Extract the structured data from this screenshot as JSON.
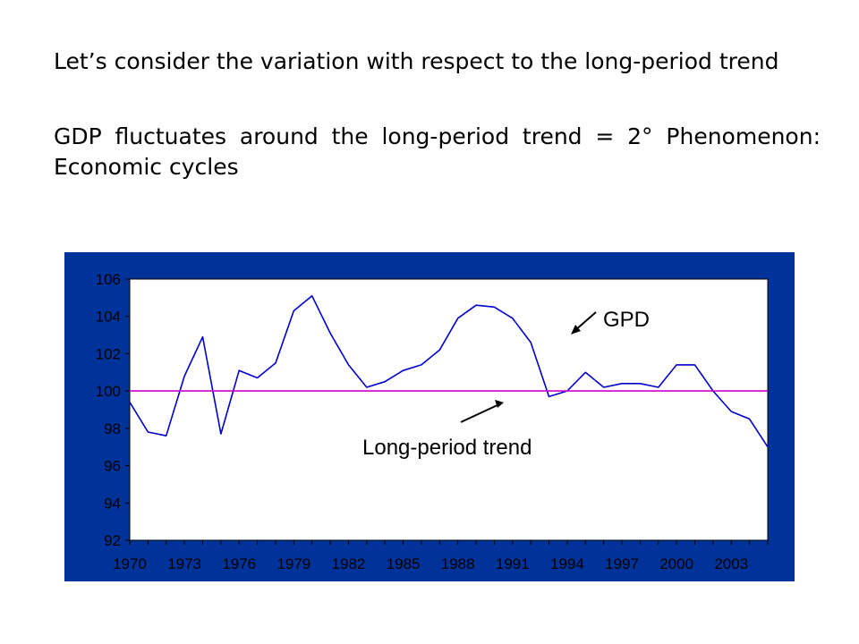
{
  "slide": {
    "paragraph1": "Let’s consider the variation with respect to the long-period trend",
    "paragraph2_line1": "GDP fluctuates around the long-period trend = 2°",
    "paragraph2_line2": "Phenomenon: Economic cycles"
  },
  "chart_data": {
    "type": "line",
    "background_color": "#003399",
    "plot_color": "#ffffff",
    "x": [
      1970,
      1971,
      1972,
      1973,
      1974,
      1975,
      1976,
      1977,
      1978,
      1979,
      1980,
      1981,
      1982,
      1983,
      1984,
      1985,
      1986,
      1987,
      1988,
      1989,
      1990,
      1991,
      1992,
      1993,
      1994,
      1995,
      1996,
      1997,
      1998,
      1999,
      2000,
      2001,
      2002,
      2003,
      2004,
      2005
    ],
    "x_tick_labels": [
      "1970",
      "1973",
      "1976",
      "1979",
      "1982",
      "1985",
      "1988",
      "1991",
      "1994",
      "1997",
      "2000",
      "2003"
    ],
    "ylim": [
      92,
      106
    ],
    "y_ticks": [
      92,
      94,
      96,
      98,
      100,
      102,
      104,
      106
    ],
    "series": [
      {
        "color": "#0000cc",
        "values": [
          99.4,
          97.8,
          97.6,
          100.8,
          102.9,
          97.7,
          101.1,
          100.7,
          101.5,
          104.3,
          105.1,
          103.1,
          101.4,
          100.2,
          100.5,
          101.1,
          101.4,
          102.2,
          103.9,
          104.6,
          104.5,
          103.9,
          102.6,
          99.7,
          100.0,
          101.0,
          100.2,
          100.4,
          100.4,
          100.2,
          101.4,
          101.4,
          100.0,
          98.9,
          98.5,
          97.0
        ]
      },
      {
        "color": "#cc00cc",
        "values": [
          100,
          100,
          100,
          100,
          100,
          100,
          100,
          100,
          100,
          100,
          100,
          100,
          100,
          100,
          100,
          100,
          100,
          100,
          100,
          100,
          100,
          100,
          100,
          100,
          100,
          100,
          100,
          100,
          100,
          100,
          100,
          100,
          100,
          100,
          100,
          100
        ]
      }
    ],
    "annotations": [
      {
        "text": "GPD",
        "target": "gdp-series"
      },
      {
        "text": "Long-period trend",
        "target": "trend-series"
      }
    ]
  }
}
